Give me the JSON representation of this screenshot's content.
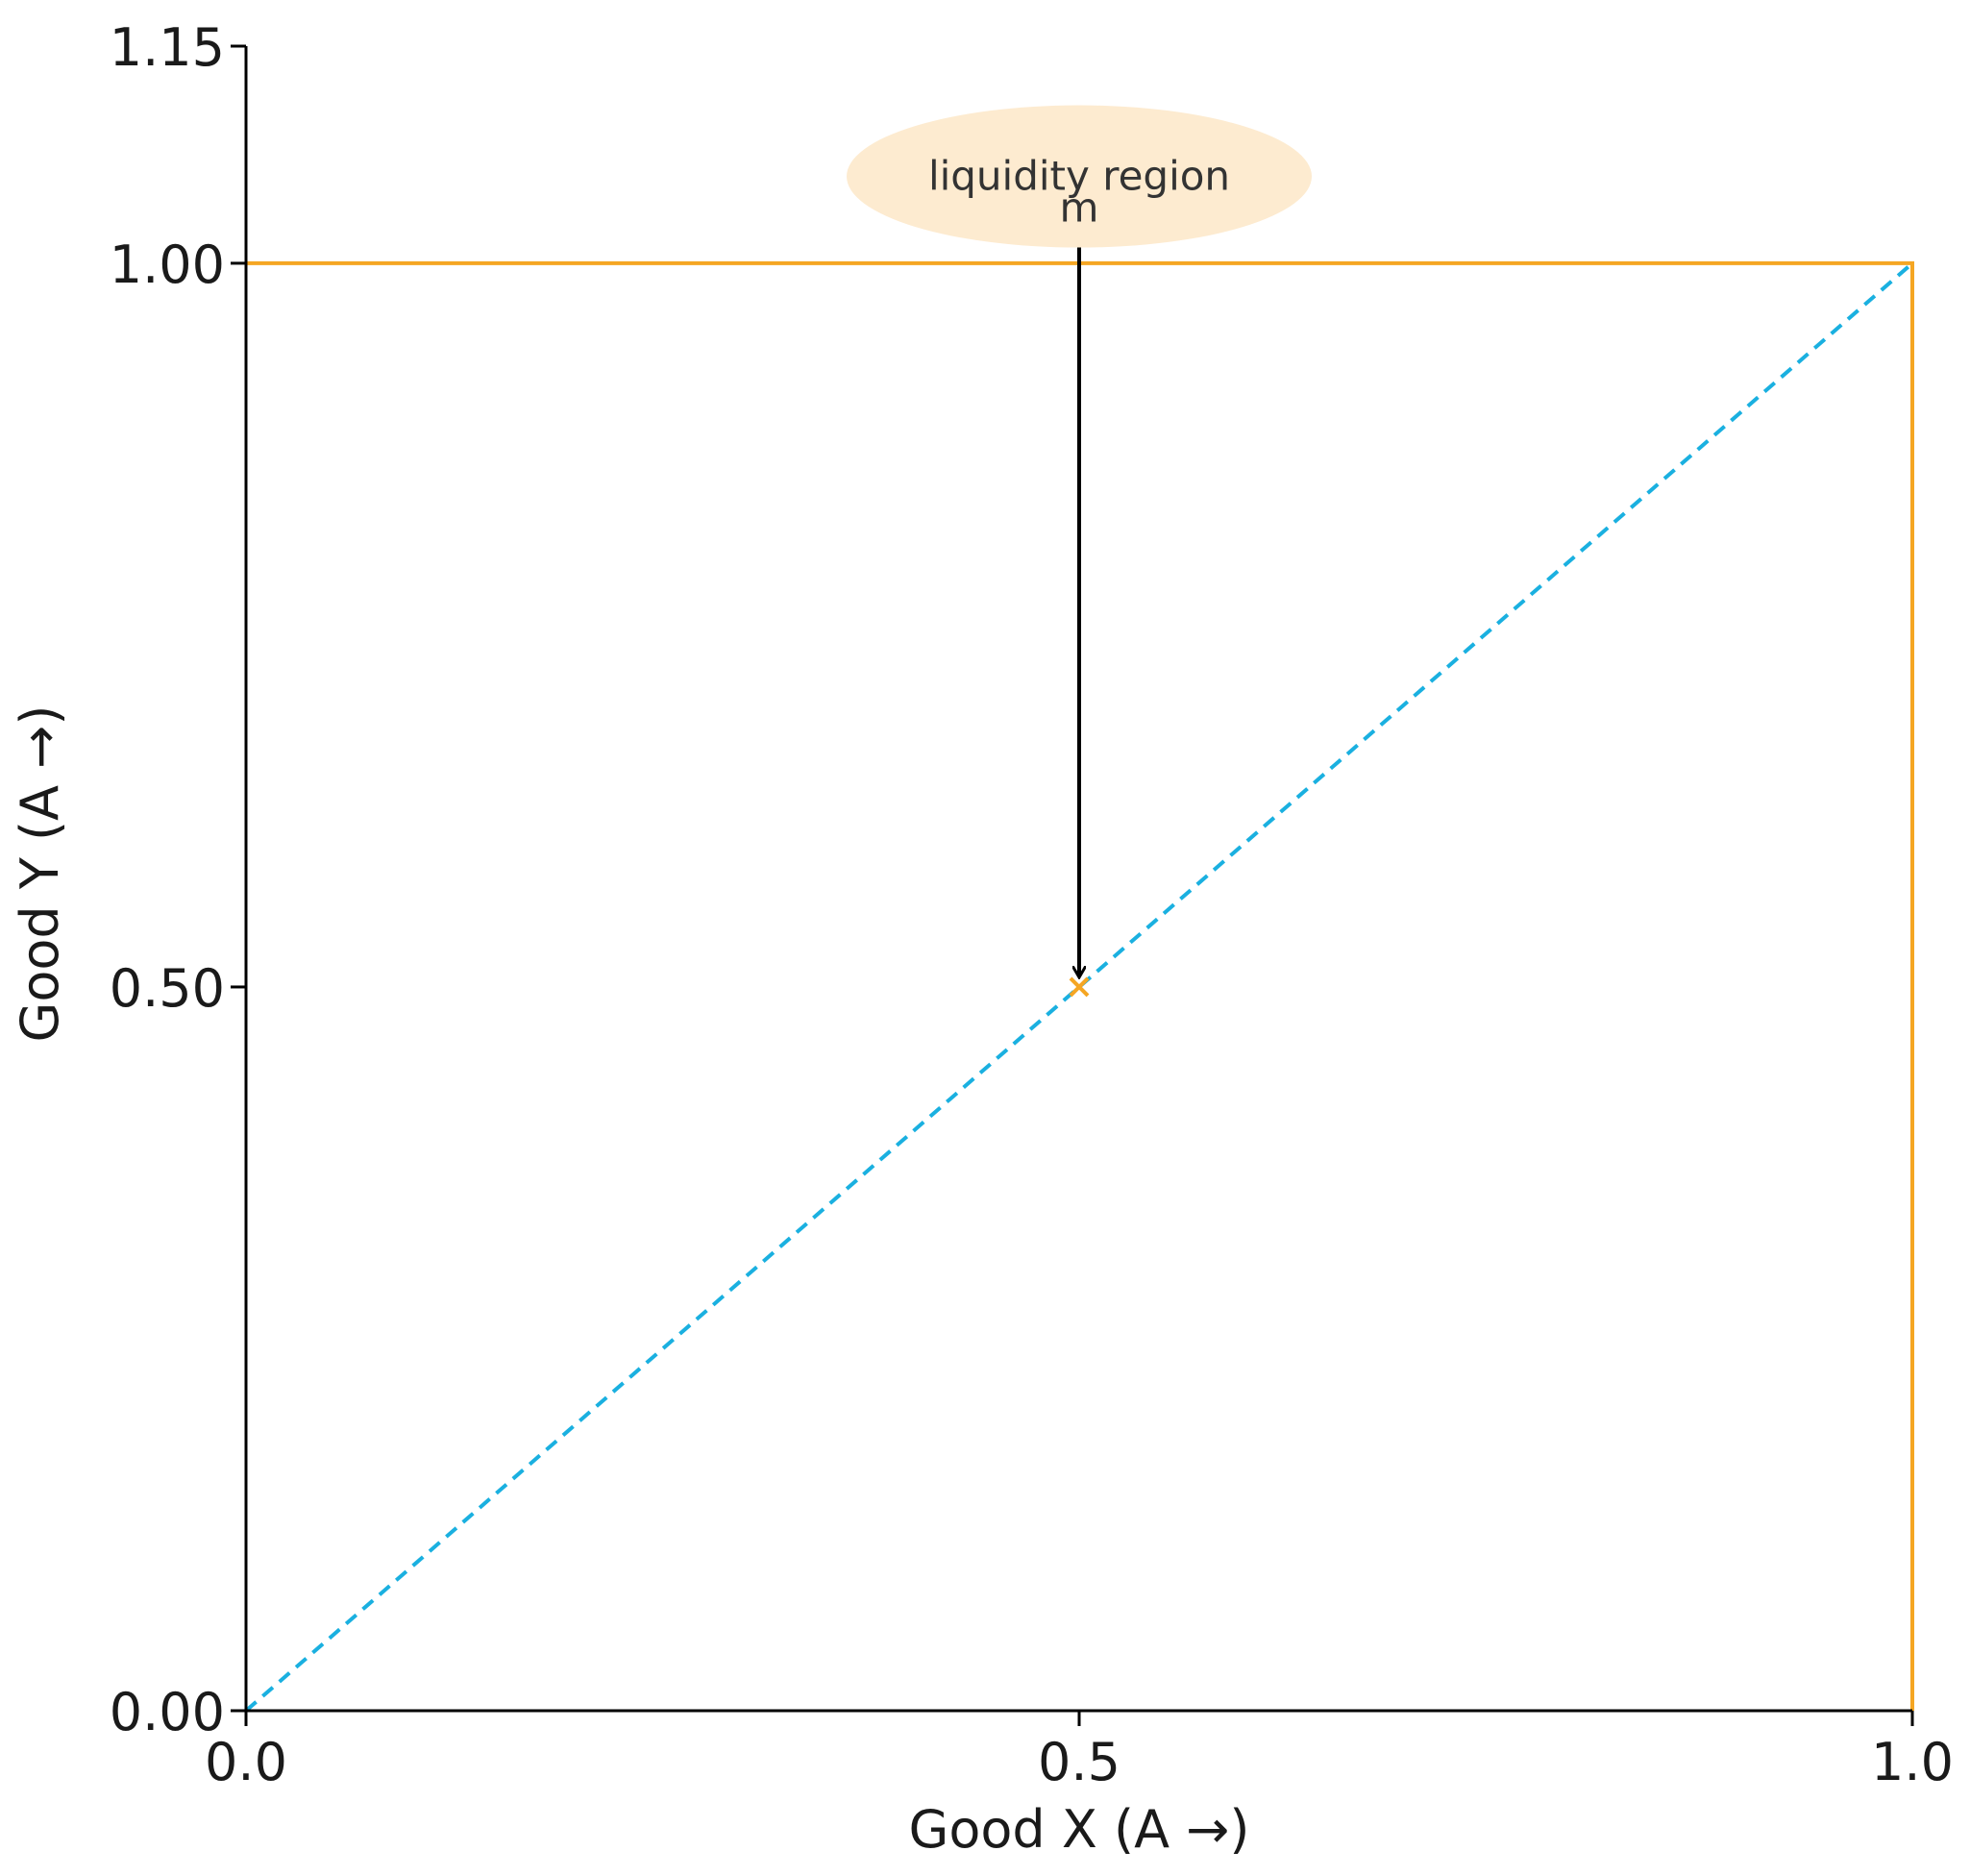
{
  "chart_data": {
    "type": "line",
    "title": "",
    "xlabel": "Good X (A →)",
    "ylabel": "Good Y (A →)",
    "xlim": [
      0.0,
      1.0
    ],
    "ylim": [
      0.0,
      1.15
    ],
    "x_ticks": [
      {
        "value": 0.0,
        "label": "0.0"
      },
      {
        "value": 0.5,
        "label": "0.5"
      },
      {
        "value": 1.0,
        "label": "1.0"
      }
    ],
    "y_ticks": [
      {
        "value": 0.0,
        "label": "0.00"
      },
      {
        "value": 0.5,
        "label": "0.50"
      },
      {
        "value": 1.0,
        "label": "1.00"
      },
      {
        "value": 1.15,
        "label": "1.15"
      }
    ],
    "grid": false,
    "series": [
      {
        "style": "solid",
        "color": "#f5a623",
        "x": [
          0.0,
          1.0,
          1.0
        ],
        "y": [
          1.0,
          1.0,
          0.0
        ]
      },
      {
        "style": "dashed",
        "color": "#1ab0e0",
        "x": [
          0.0,
          1.0
        ],
        "y": [
          0.0,
          1.0
        ]
      }
    ],
    "points": [
      {
        "x": 0.5,
        "y": 0.5,
        "marker": "x",
        "color": "#f5a623"
      }
    ],
    "annotations": [
      {
        "lines": [
          "liquidity region",
          "m"
        ],
        "text_x": 0.5,
        "text_y": 1.06,
        "arrow_to": [
          0.5,
          0.5
        ],
        "bubble_color": "#fdebd0",
        "arrow_color": "#000000"
      }
    ]
  }
}
